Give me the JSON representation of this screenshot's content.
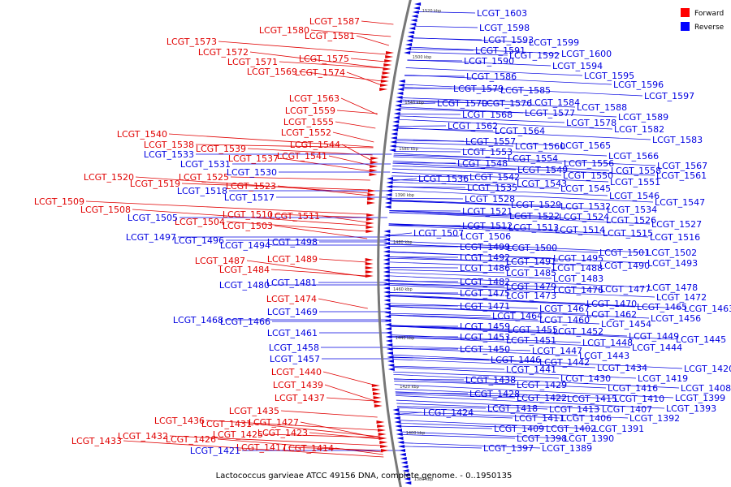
{
  "caption": "Lactococcus garvieae ATCC 49156 DNA, complete genome. - 0..1950135",
  "legend": [
    {
      "label": "Forward",
      "color": "#ff0000"
    },
    {
      "label": "Reverse",
      "color": "#0000ff"
    }
  ],
  "colors": {
    "forward": "#e00000",
    "reverse": "#0000e0",
    "backbone": "#777777"
  },
  "scale_marks": [
    "1520 kbp",
    "1500 kbp",
    "1540 kbp",
    "1580 kbp",
    "1390 kbp",
    "1480 kbp",
    "1460 kbp",
    "1440 kbp",
    "1420 kbp",
    "1400 kbp",
    "1380 kbp"
  ],
  "forward_labels": [
    "LCGT_1587",
    "LCGT_1580",
    "LCGT_1581",
    "LCGT_1573",
    "LCGT_1572",
    "LCGT_1575",
    "LCGT_1571",
    "LCGT_1569",
    "LCGT_1574",
    "LCGT_1563",
    "LCGT_1559",
    "LCGT_1555",
    "LCGT_1552",
    "LCGT_1540",
    "LCGT_1544",
    "LCGT_1538",
    "LCGT_1539",
    "LCGT_1541",
    "LCGT_1537",
    "LCGT_1520",
    "LCGT_1525",
    "LCGT_1519",
    "LCGT_1523",
    "LCGT_1509",
    "LCGT_1508",
    "LCGT_1510",
    "LCGT_1511",
    "LCGT_1504",
    "LCGT_1503",
    "LCGT_1487",
    "LCGT_1489",
    "LCGT_1484",
    "LCGT_1474",
    "LCGT_1440",
    "LCGT_1439",
    "LCGT_1437",
    "LCGT_1435",
    "LCGT_1436",
    "LCGT_1431",
    "LCGT_1427",
    "LCGT_1425",
    "LCGT_1423",
    "LCGT_1432",
    "LCGT_1426",
    "LCGT_1433",
    "LCGT_1417",
    "LCGT_1414"
  ],
  "reverse_left_labels": [
    "LCGT_1533",
    "LCGT_1531",
    "LCGT_1530",
    "LCGT_1518",
    "LCGT_1517",
    "LCGT_1505",
    "LCGT_1497",
    "LCGT_1496",
    "LCGT_1494",
    "LCGT_1498",
    "LCGT_1480",
    "LCGT_1481",
    "LCGT_1469",
    "LCGT_1468",
    "LCGT_1466",
    "LCGT_1461",
    "LCGT_1458",
    "LCGT_1457",
    "LCGT_1421"
  ],
  "reverse_right_labels": [
    "LCGT_1603",
    "LCGT_1598",
    "LCGT_1593",
    "LCGT_1599",
    "LCGT_1591",
    "LCGT_1592",
    "LCGT_1600",
    "LCGT_1590",
    "LCGT_1594",
    "LCGT_1595",
    "LCGT_1586",
    "LCGT_1596",
    "LCGT_1579",
    "LCGT_1585",
    "LCGT_1597",
    "LCGT_1570",
    "LCGT_1576",
    "LCGT_1584",
    "LCGT_1588",
    "LCGT_1568",
    "LCGT_1577",
    "LCGT_1589",
    "LCGT_1562",
    "LCGT_1578",
    "LCGT_1582",
    "LCGT_1564",
    "LCGT_1557",
    "LCGT_1560",
    "LCGT_1565",
    "LCGT_1583",
    "LCGT_1553",
    "LCGT_1566",
    "LCGT_1554",
    "LCGT_1548",
    "LCGT_1556",
    "LCGT_1567",
    "LCGT_1549",
    "LCGT_1558",
    "LCGT_1542",
    "LCGT_1550",
    "LCGT_1561",
    "LCGT_1536",
    "LCGT_1543",
    "LCGT_1551",
    "LCGT_1535",
    "LCGT_1545",
    "LCGT_1546",
    "LCGT_1528",
    "LCGT_1529",
    "LCGT_1532",
    "LCGT_1547",
    "LCGT_1521",
    "LCGT_1534",
    "LCGT_1522",
    "LCGT_1524",
    "LCGT_1526",
    "LCGT_1512",
    "LCGT_1513",
    "LCGT_1514",
    "LCGT_1527",
    "LCGT_1507",
    "LCGT_1515",
    "LCGT_1506",
    "LCGT_1516",
    "LCGT_1499",
    "LCGT_1500",
    "LCGT_1501",
    "LCGT_1502",
    "LCGT_1492",
    "LCGT_1491",
    "LCGT_1495",
    "LCGT_1493",
    "LCGT_1486",
    "LCGT_1485",
    "LCGT_1488",
    "LCGT_1490",
    "LCGT_1483",
    "LCGT_1482",
    "LCGT_1479",
    "LCGT_1476",
    "LCGT_1477",
    "LCGT_1478",
    "LCGT_1475",
    "LCGT_1473",
    "LCGT_1472",
    "LCGT_1471",
    "LCGT_1467",
    "LCGT_1470",
    "LCGT_1465",
    "LCGT_1463",
    "LCGT_1464",
    "LCGT_1460",
    "LCGT_1462",
    "LCGT_1456",
    "LCGT_1459",
    "LCGT_1455",
    "LCGT_1454",
    "LCGT_1453",
    "LCGT_1451",
    "LCGT_1452",
    "LCGT_1449",
    "LCGT_1445",
    "LCGT_1448",
    "LCGT_1444",
    "LCGT_1450",
    "LCGT_1447",
    "LCGT_1443",
    "LCGT_1446",
    "LCGT_1442",
    "LCGT_1441",
    "LCGT_1434",
    "LCGT_1438",
    "LCGT_1430",
    "LCGT_1419",
    "LCGT_1420",
    "LCGT_1429",
    "LCGT_1416",
    "LCGT_1408",
    "LCGT_1428",
    "LCGT_1422",
    "LCGT_1415",
    "LCGT_1410",
    "LCGT_1399",
    "LCGT_1418",
    "LCGT_1413",
    "LCGT_1407",
    "LCGT_1393",
    "LCGT_1424",
    "LCGT_1411",
    "LCGT_1406",
    "LCGT_1392",
    "LCGT_1409",
    "LCGT_1402",
    "LCGT_1391",
    "LCGT_1398",
    "LCGT_1390",
    "LCGT_1397",
    "LCGT_1389"
  ]
}
